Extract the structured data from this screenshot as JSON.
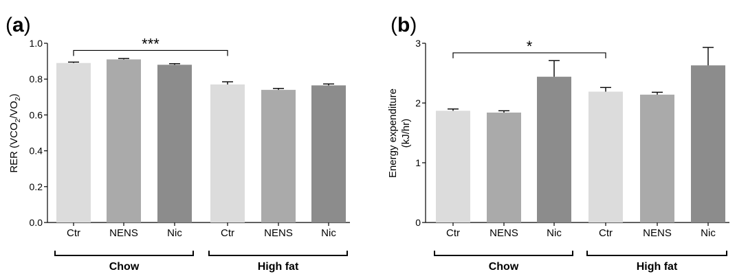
{
  "chart_data": [
    {
      "panel_label": "a",
      "type": "bar",
      "categories": [
        "Ctr",
        "NENS",
        "Nic",
        "Ctr",
        "NENS",
        "Nic"
      ],
      "values": [
        0.89,
        0.91,
        0.88,
        0.77,
        0.74,
        0.765
      ],
      "errors": [
        0.005,
        0.005,
        0.006,
        0.015,
        0.008,
        0.008
      ],
      "bar_colors": [
        "#dcdcdc",
        "#aaaaaa",
        "#8c8c8c",
        "#dcdcdc",
        "#aaaaaa",
        "#8c8c8c"
      ],
      "ylabel_main": "RER (VCO",
      "ylabel_sub1": "2",
      "ylabel_mid": "/VO",
      "ylabel_sub2": "2",
      "ylabel_end": ")",
      "ylim": [
        0,
        1.0
      ],
      "yticks": [
        "0.0",
        "0.2",
        "0.4",
        "0.6",
        "0.8",
        "1.0"
      ],
      "ytick_values": [
        0,
        0.2,
        0.4,
        0.6,
        0.8,
        1.0
      ],
      "groups": [
        {
          "label": "Chow",
          "bars": [
            0,
            2
          ]
        },
        {
          "label": "High fat",
          "bars": [
            3,
            5
          ]
        }
      ],
      "significance": {
        "from": 0,
        "to": 3,
        "label": "***",
        "level": 0.96
      },
      "grid": false
    },
    {
      "panel_label": "b",
      "type": "bar",
      "categories": [
        "Ctr",
        "NENS",
        "Nic",
        "Ctr",
        "NENS",
        "Nic"
      ],
      "values": [
        1.87,
        1.84,
        2.44,
        2.19,
        2.14,
        2.63
      ],
      "errors": [
        0.03,
        0.03,
        0.27,
        0.07,
        0.04,
        0.3
      ],
      "bar_colors": [
        "#dcdcdc",
        "#aaaaaa",
        "#8c8c8c",
        "#dcdcdc",
        "#aaaaaa",
        "#8c8c8c"
      ],
      "ylabel_line1": "Energy expenditure",
      "ylabel_line2": "(kJ/hr)",
      "ylim": [
        0,
        3
      ],
      "yticks": [
        "0",
        "1",
        "2",
        "3"
      ],
      "ytick_values": [
        0,
        1,
        2,
        3
      ],
      "groups": [
        {
          "label": "Chow",
          "bars": [
            0,
            2
          ]
        },
        {
          "label": "High fat",
          "bars": [
            3,
            5
          ]
        }
      ],
      "significance": {
        "from": 0,
        "to": 3,
        "label": "*",
        "level": 2.84
      },
      "grid": false
    }
  ]
}
